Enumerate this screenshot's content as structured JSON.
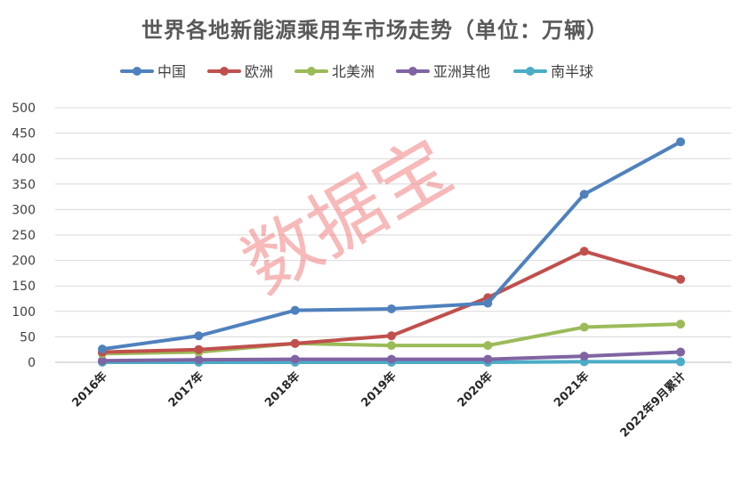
{
  "chart_data": {
    "type": "line",
    "title": "世界各地新能源乘用车市场走势（单位：万辆）",
    "categories": [
      "2016年",
      "2017年",
      "2018年",
      "2019年",
      "2020年",
      "2021年",
      "2022年9月累计"
    ],
    "ylim": [
      0,
      500
    ],
    "yticks": [
      0,
      50,
      100,
      150,
      200,
      250,
      300,
      350,
      400,
      450,
      500
    ],
    "grid": true,
    "legend_position": "top",
    "series": [
      {
        "name": "中国",
        "color": "#4F81BD",
        "values": [
          26,
          52,
          102,
          105,
          116,
          330,
          433
        ]
      },
      {
        "name": "欧洲",
        "color": "#C0504D",
        "values": [
          20,
          25,
          37,
          52,
          127,
          218,
          163
        ]
      },
      {
        "name": "北美洲",
        "color": "#9BBB59",
        "values": [
          17,
          20,
          37,
          33,
          33,
          69,
          75
        ]
      },
      {
        "name": "亚洲其他",
        "color": "#8064A2",
        "values": [
          3,
          5,
          6,
          6,
          6,
          12,
          20
        ]
      },
      {
        "name": "南半球",
        "color": "#4BACC6",
        "values": [
          0,
          0,
          0,
          0,
          0,
          1,
          1
        ]
      }
    ],
    "watermark": "数据宝"
  }
}
